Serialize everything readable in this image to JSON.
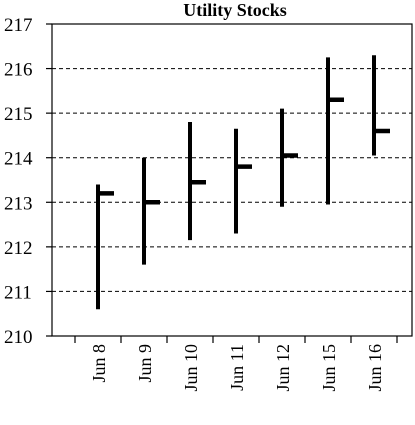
{
  "chart_data": {
    "type": "ohlc",
    "title": "Utility Stocks",
    "xlabel": "",
    "ylabel": "",
    "categories": [
      "Jun 8",
      "Jun 9",
      "Jun 10",
      "Jun 11",
      "Jun 12",
      "Jun 15",
      "Jun 16"
    ],
    "high": [
      213.4,
      214.0,
      214.8,
      214.65,
      215.1,
      216.25,
      216.3
    ],
    "low": [
      210.6,
      211.6,
      212.15,
      212.3,
      212.9,
      212.95,
      214.05
    ],
    "close": [
      213.2,
      213.0,
      213.45,
      213.8,
      214.05,
      215.3,
      214.6
    ],
    "ylim": [
      210,
      217
    ],
    "yticks": [
      210,
      211,
      212,
      213,
      214,
      215,
      216,
      217
    ],
    "grid": "horizontal-dashed",
    "legend": "none"
  }
}
